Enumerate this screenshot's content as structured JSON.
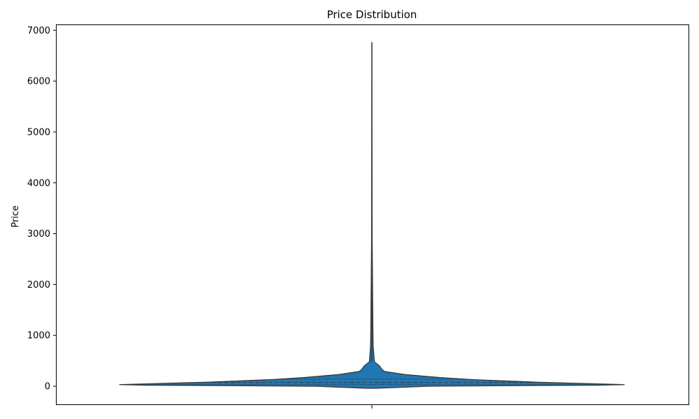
{
  "chart_data": {
    "type": "violin",
    "title": "Price Distribution",
    "xlabel": "",
    "ylabel": "Price",
    "ylim": [
      -370,
      7100
    ],
    "yticks": [
      0,
      1000,
      2000,
      3000,
      4000,
      5000,
      6000,
      7000
    ],
    "grid": false,
    "legend": "none",
    "colors": {
      "fill": "#1f77b4",
      "edge": "#3a3a3a",
      "quartile": "#3a3a3a"
    },
    "series": [
      {
        "min": -40,
        "max": 6760,
        "quartiles": [
          35,
          75,
          140
        ],
        "profile": [
          {
            "y": -40,
            "half_width": 0.02
          },
          {
            "y": 0,
            "half_width": 0.22
          },
          {
            "y": 20,
            "half_width": 0.9
          },
          {
            "y": 32,
            "half_width": 1.0
          },
          {
            "y": 45,
            "half_width": 0.9
          },
          {
            "y": 80,
            "half_width": 0.65
          },
          {
            "y": 130,
            "half_width": 0.4
          },
          {
            "y": 170,
            "half_width": 0.27
          },
          {
            "y": 230,
            "half_width": 0.13
          },
          {
            "y": 290,
            "half_width": 0.05
          },
          {
            "y": 330,
            "half_width": 0.04
          },
          {
            "y": 400,
            "half_width": 0.03
          },
          {
            "y": 480,
            "half_width": 0.01
          },
          {
            "y": 600,
            "half_width": 0.008
          },
          {
            "y": 800,
            "half_width": 0.005
          },
          {
            "y": 1200,
            "half_width": 0.004
          },
          {
            "y": 1800,
            "half_width": 0.003
          },
          {
            "y": 3000,
            "half_width": 0.001
          },
          {
            "y": 6760,
            "half_width": 0.0
          }
        ]
      }
    ]
  }
}
